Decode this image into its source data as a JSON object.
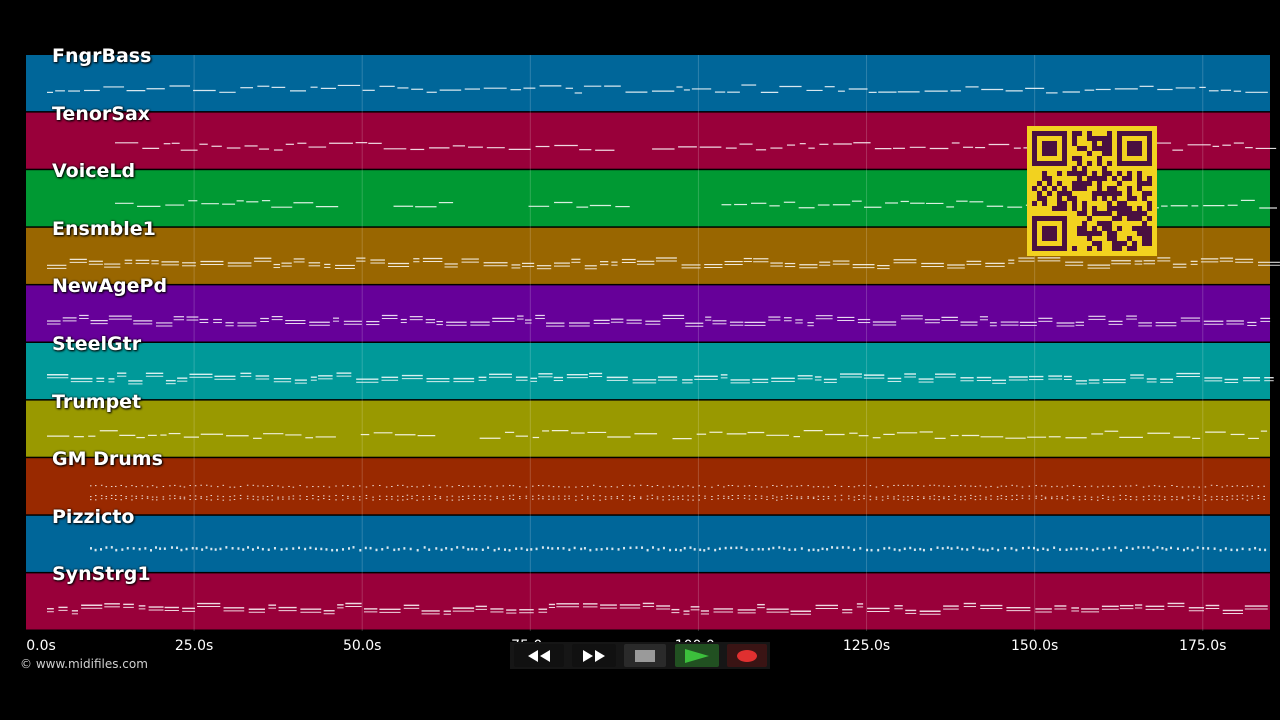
{
  "tracks": [
    {
      "name": "FngrBass",
      "color": "#006699"
    },
    {
      "name": "TenorSax",
      "color": "#99003a"
    },
    {
      "name": "VoiceLd",
      "color": "#009933"
    },
    {
      "name": "Ensmble1",
      "color": "#996600"
    },
    {
      "name": "NewAgePd",
      "color": "#660099"
    },
    {
      "name": "SteelGtr",
      "color": "#009999"
    },
    {
      "name": "Trumpet",
      "color": "#999900"
    },
    {
      "name": "GM Drums",
      "color": "#992900"
    },
    {
      "name": "Pizzicto",
      "color": "#006699"
    },
    {
      "name": "SynStrg1",
      "color": "#99003a"
    }
  ],
  "timeline": {
    "ticks": [
      "0.0s",
      "25.0s",
      "50.0s",
      "75.0s",
      "100.0s",
      "125.0s",
      "150.0s",
      "175.0s"
    ],
    "tick_values": [
      0,
      25,
      50,
      75,
      100,
      125,
      150,
      175
    ],
    "range_seconds": [
      0,
      185
    ]
  },
  "copyright": "© www.midifiles.com",
  "controls": {
    "rewind_icon": "rewind-icon",
    "fast_forward_icon": "fast-forward-icon",
    "stop_icon": "stop-icon",
    "play_icon": "play-icon",
    "record_icon": "record-icon",
    "play_color": "#3cbf3c",
    "record_color": "#e03030"
  },
  "overlay": {
    "qr_icon": "qr-code-icon",
    "qr_color": "#f2d21f",
    "qr_dark": "#4a1040"
  }
}
